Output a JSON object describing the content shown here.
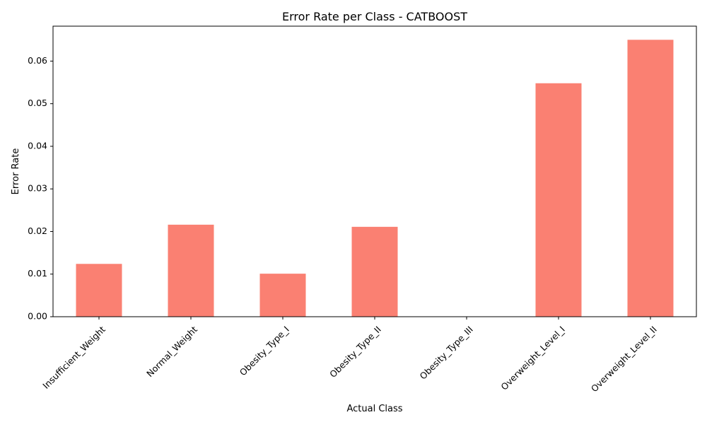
{
  "chart_data": {
    "type": "bar",
    "title": "Error Rate per Class - CATBOOST",
    "xlabel": "Actual Class",
    "ylabel": "Error Rate",
    "categories": [
      "Insufficient_Weight",
      "Normal_Weight",
      "Obesity_Type_I",
      "Obesity_Type_II",
      "Obesity_Type_III",
      "Overweight_Level_I",
      "Overweight_Level_II"
    ],
    "values": [
      0.0124,
      0.0216,
      0.0101,
      0.0211,
      0.0,
      0.0548,
      0.065
    ],
    "ylim": [
      0,
      0.0682
    ],
    "yticks": [
      0.0,
      0.01,
      0.02,
      0.03,
      0.04,
      0.05,
      0.06
    ],
    "ytick_labels": [
      "0.00",
      "0.01",
      "0.02",
      "0.03",
      "0.04",
      "0.05",
      "0.06"
    ],
    "bar_color": "#fa8072",
    "grid": false,
    "legend": "none"
  }
}
